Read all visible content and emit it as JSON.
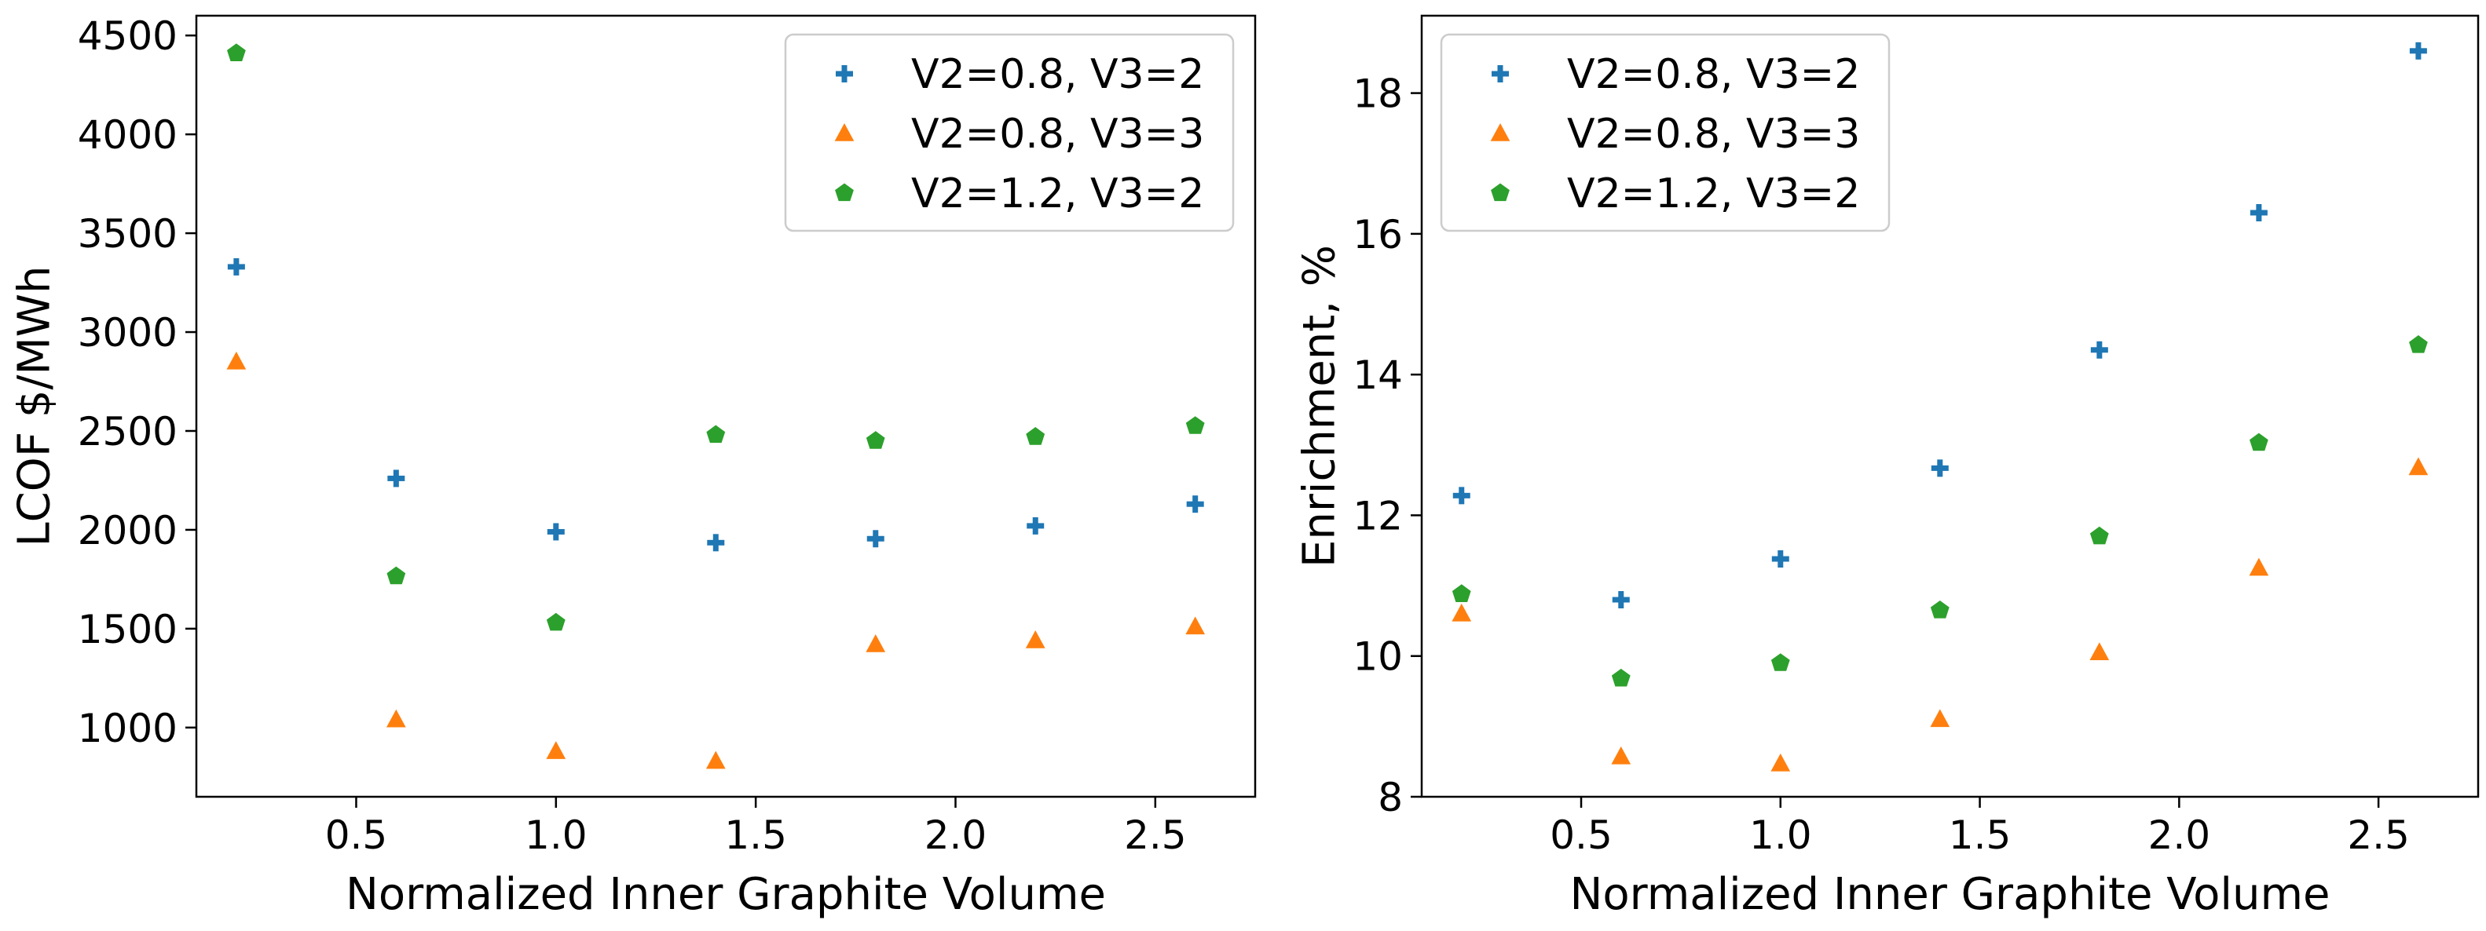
{
  "chart_data": [
    {
      "type": "scatter",
      "xlabel": "Normalized Inner Graphite Volume",
      "ylabel": "LCOF $/MWh",
      "xlim": [
        0.1,
        2.75
      ],
      "ylim": [
        650,
        4600
      ],
      "xticks": [
        0.5,
        1.0,
        1.5,
        2.0,
        2.5
      ],
      "xtick_labels": [
        "0.5",
        "1.0",
        "1.5",
        "2.0",
        "2.5"
      ],
      "yticks": [
        1000,
        1500,
        2000,
        2500,
        3000,
        3500,
        4000,
        4500
      ],
      "ytick_labels": [
        "1000",
        "1500",
        "2000",
        "2500",
        "3000",
        "3500",
        "4000",
        "4500"
      ],
      "legend_position": "top-right",
      "series": [
        {
          "name": "V2=0.8, V3=2",
          "marker": "plus",
          "color": "#1f77b4",
          "x": [
            0.2,
            0.6,
            1.0,
            1.4,
            1.8,
            2.2,
            2.6
          ],
          "y": [
            3330,
            2260,
            1990,
            1935,
            1955,
            2020,
            2130
          ]
        },
        {
          "name": "V2=0.8, V3=3",
          "marker": "triangle",
          "color": "#ff7f0e",
          "x": [
            0.2,
            0.6,
            1.0,
            1.4,
            1.8,
            2.2,
            2.6
          ],
          "y": [
            2850,
            1040,
            880,
            830,
            1420,
            1440,
            1510
          ]
        },
        {
          "name": "V2=1.2, V3=2",
          "marker": "pentagon",
          "color": "#2ca02c",
          "x": [
            0.2,
            0.6,
            1.0,
            1.4,
            1.8,
            2.2,
            2.6
          ],
          "y": [
            4410,
            1765,
            1530,
            2480,
            2450,
            2470,
            2525
          ]
        }
      ]
    },
    {
      "type": "scatter",
      "xlabel": "Normalized Inner Graphite Volume",
      "ylabel": "Enrichment, %",
      "xlim": [
        0.1,
        2.75
      ],
      "ylim": [
        8,
        19.1
      ],
      "xticks": [
        0.5,
        1.0,
        1.5,
        2.0,
        2.5
      ],
      "xtick_labels": [
        "0.5",
        "1.0",
        "1.5",
        "2.0",
        "2.5"
      ],
      "yticks": [
        8,
        10,
        12,
        14,
        16,
        18
      ],
      "ytick_labels": [
        "8",
        "10",
        "12",
        "14",
        "16",
        "18"
      ],
      "legend_position": "top-left",
      "series": [
        {
          "name": "V2=0.8, V3=2",
          "marker": "plus",
          "color": "#1f77b4",
          "x": [
            0.2,
            0.6,
            1.0,
            1.4,
            1.8,
            2.2,
            2.6
          ],
          "y": [
            12.28,
            10.8,
            11.38,
            12.67,
            14.35,
            16.3,
            18.6
          ]
        },
        {
          "name": "V2=0.8, V3=3",
          "marker": "triangle",
          "color": "#ff7f0e",
          "x": [
            0.2,
            0.6,
            1.0,
            1.4,
            1.8,
            2.2,
            2.6
          ],
          "y": [
            10.6,
            8.57,
            8.47,
            9.1,
            10.05,
            11.25,
            12.68
          ]
        },
        {
          "name": "V2=1.2, V3=2",
          "marker": "pentagon",
          "color": "#2ca02c",
          "x": [
            0.2,
            0.6,
            1.0,
            1.4,
            1.8,
            2.2,
            2.6
          ],
          "y": [
            10.88,
            9.68,
            9.9,
            10.65,
            11.7,
            13.03,
            14.42
          ]
        }
      ]
    }
  ]
}
